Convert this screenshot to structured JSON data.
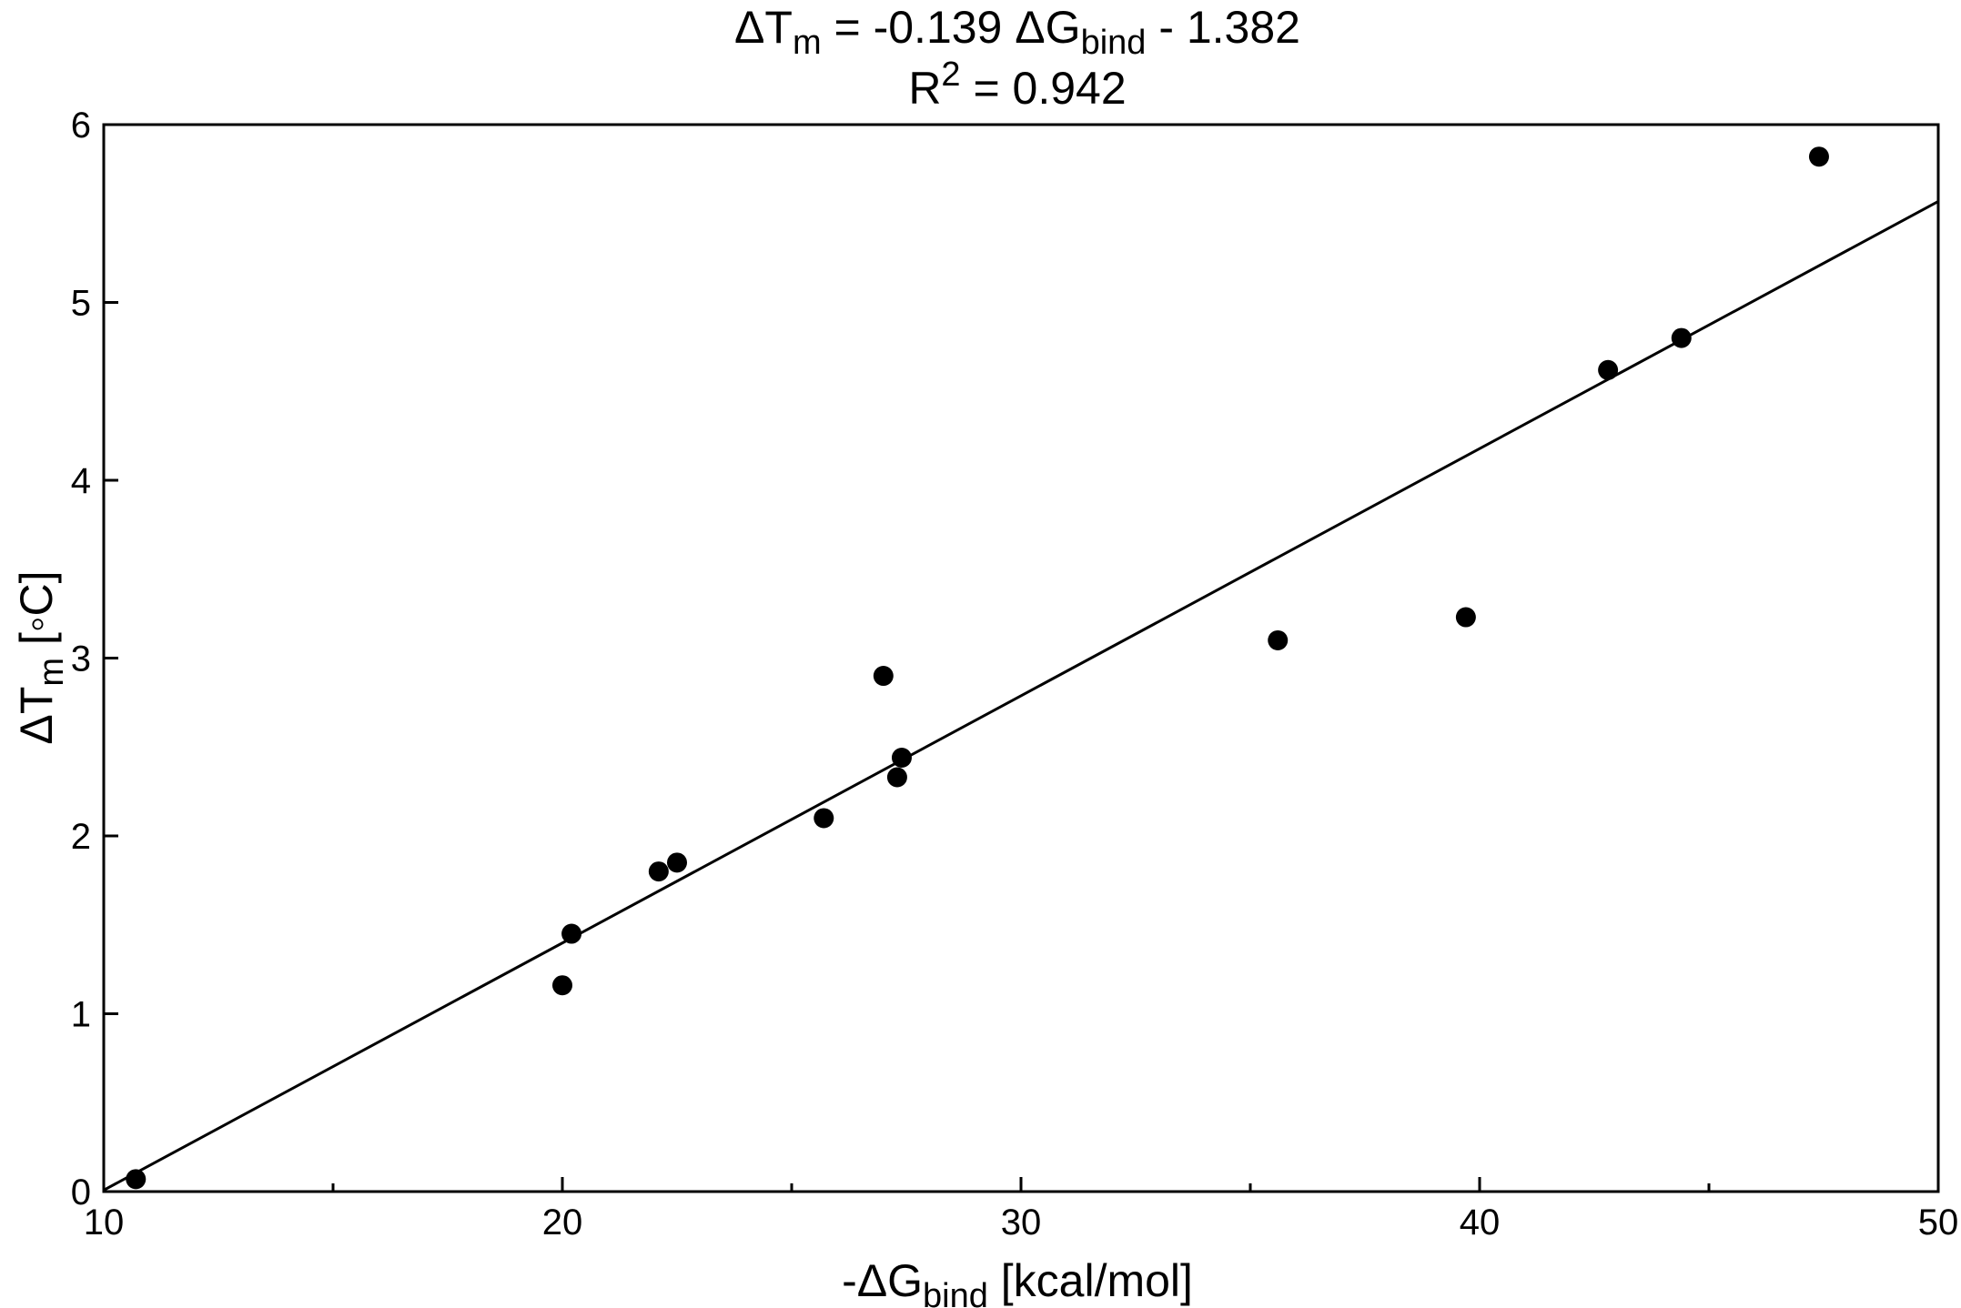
{
  "chart_data": {
    "type": "scatter",
    "title": {
      "delta1": "Δ",
      "T": "T",
      "sub_m": "m",
      "mid": " = -0.139 ",
      "delta2": "Δ",
      "G": "G",
      "sub_bind": "bind",
      "tail": " - 1.382"
    },
    "subtitle": {
      "R": "R",
      "sup": "2",
      "rest": " = 0.942"
    },
    "xlabel": {
      "minus_delta": "-Δ",
      "G": "G",
      "sub": "bind",
      "rest": " [kcal/mol]"
    },
    "ylabel": {
      "delta": "Δ",
      "T": "T",
      "sub": "m",
      "rest": " [◦C]"
    },
    "xlim": [
      10,
      50
    ],
    "ylim": [
      0,
      6
    ],
    "x_ticks": [
      10,
      20,
      30,
      40,
      50
    ],
    "y_ticks": [
      0,
      1,
      2,
      3,
      4,
      5,
      6
    ],
    "x_tick_labels": [
      "10",
      "20",
      "30",
      "40",
      "50"
    ],
    "y_tick_labels": [
      "0",
      "1",
      "2",
      "3",
      "4",
      "5",
      "6"
    ],
    "x_minor_ticks": [
      15,
      25,
      35,
      45
    ],
    "grid": false,
    "legend": "none",
    "marker_color": "#000000",
    "line_color": "#000000",
    "fit_line": {
      "slope": 0.139,
      "intercept": -1.382
    },
    "points": [
      {
        "x": 10.7,
        "y": 0.07
      },
      {
        "x": 20.0,
        "y": 1.16
      },
      {
        "x": 20.2,
        "y": 1.45
      },
      {
        "x": 22.1,
        "y": 1.8
      },
      {
        "x": 22.5,
        "y": 1.85
      },
      {
        "x": 25.7,
        "y": 2.1
      },
      {
        "x": 27.0,
        "y": 2.9
      },
      {
        "x": 27.3,
        "y": 2.33
      },
      {
        "x": 27.4,
        "y": 2.44
      },
      {
        "x": 35.6,
        "y": 3.1
      },
      {
        "x": 39.7,
        "y": 3.23
      },
      {
        "x": 42.8,
        "y": 4.62
      },
      {
        "x": 44.4,
        "y": 4.8
      },
      {
        "x": 47.4,
        "y": 5.82
      }
    ]
  }
}
